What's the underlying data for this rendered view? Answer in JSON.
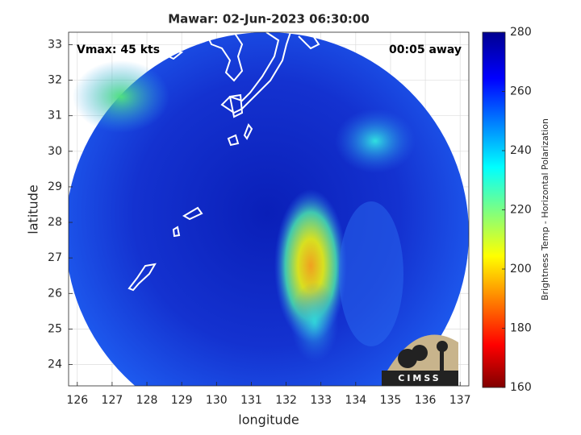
{
  "chart_data": {
    "type": "map",
    "title": "Mawar: 02-Jun-2023 06:30:00",
    "annotations": [
      "Vmax: 45 kts",
      "00:05 away"
    ],
    "xlabel": "longitude",
    "ylabel": "latitude",
    "xlim": [
      125.75,
      137.25
    ],
    "ylim": [
      23.4,
      33.35
    ],
    "xticks": [
      126,
      127,
      128,
      129,
      130,
      131,
      132,
      133,
      134,
      135,
      136,
      137
    ],
    "yticks": [
      24,
      25,
      26,
      27,
      28,
      29,
      30,
      31,
      32,
      33
    ],
    "grid": true,
    "colorbar": {
      "label": "Brightness Temp - Horizontal Polarization",
      "lim": [
        160,
        280
      ],
      "ticks": [
        160,
        180,
        200,
        220,
        240,
        260,
        280
      ]
    },
    "logo": "CIMSS"
  }
}
